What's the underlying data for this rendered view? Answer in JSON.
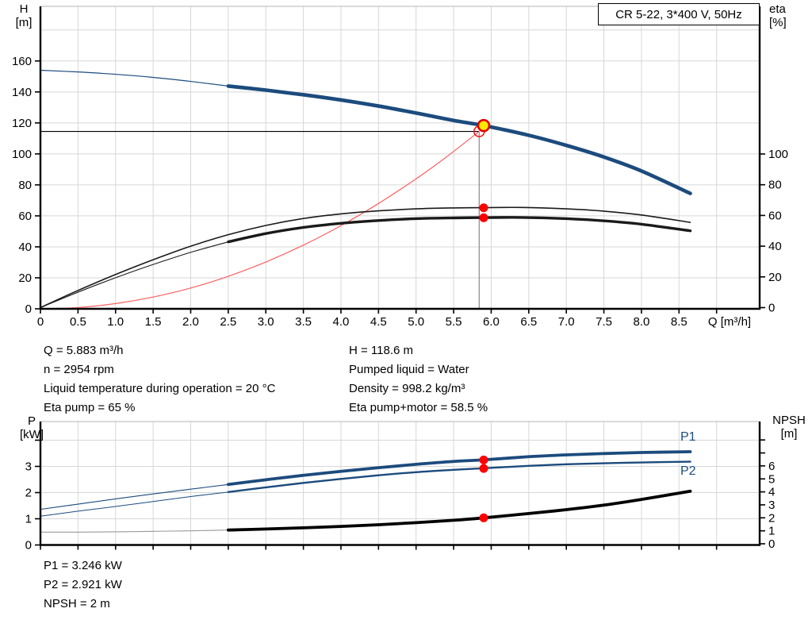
{
  "window": {
    "background": "#ffffff"
  },
  "title_box": {
    "label": "CR 5-22, 3*400 V, 50Hz"
  },
  "info_top": {
    "left": [
      "Q = 5.883 m³/h",
      "n = 2954 rpm",
      "Liquid temperature during operation = 20 °C",
      "Eta pump = 65 %"
    ],
    "right": [
      "H = 118.6 m",
      "Pumped liquid = Water",
      "Density = 998.2 kg/m³",
      "Eta pump+motor = 58.5 %"
    ]
  },
  "info_bottom": [
    "P1 = 3.246 kW",
    "P2 = 2.921 kW",
    "NPSH = 2 m"
  ],
  "colors": {
    "curve_blue": "#1c4b7d",
    "curve_black": "#1a1a1a",
    "system_red": "#ff6060",
    "dot_red": "#ff0000",
    "marker_yellow": "#ffe600",
    "marker_ring_red": "#e00000",
    "grid": "#d7d7d7",
    "axis": "#000000",
    "duty_vline_gray": "#888888",
    "npsh_thin_gray": "#999999"
  },
  "chart_data": [
    {
      "id": "qh-chart",
      "type": "line",
      "title": "CR 5-22, 3*400 V, 50Hz",
      "x_axis": {
        "label": "Q [m³/h]",
        "tick_values": [
          0,
          0.5,
          1,
          1.5,
          2,
          2.5,
          3,
          3.5,
          4,
          4.5,
          5,
          5.5,
          6,
          6.5,
          7,
          7.5,
          8,
          8.5,
          9
        ],
        "tick_labels": [
          "0",
          "0.5",
          "1.0",
          "1.5",
          "2.0",
          "2.5",
          "3.0",
          "3.5",
          "4.0",
          "4.5",
          "5.0",
          "5.5",
          "6.0",
          "6.5",
          "7.0",
          "7.5",
          "8.0",
          "8.5",
          ""
        ]
      },
      "y_left": {
        "label_line1": "H",
        "label_line2": "[m]",
        "tick_values": [
          0,
          20,
          40,
          60,
          80,
          100,
          120,
          140,
          160
        ],
        "grid_values": [
          20,
          40,
          60,
          80,
          100,
          120,
          140,
          160,
          180
        ]
      },
      "y_right": {
        "label_line1": "eta",
        "label_line2": "[%]",
        "tick_values": [
          0,
          20,
          40,
          60,
          80,
          100
        ]
      },
      "series": [
        {
          "name": "system-curve",
          "axis": "left",
          "color": "#ff6060",
          "width": 1.2,
          "points": [
            [
              0,
              0
            ],
            [
              0.5,
              0.8
            ],
            [
              1,
              3.4
            ],
            [
              1.5,
              7.6
            ],
            [
              2,
              13.4
            ],
            [
              2.5,
              21
            ],
            [
              3,
              30.2
            ],
            [
              3.5,
              41.1
            ],
            [
              4,
              53.7
            ],
            [
              4.5,
              68
            ],
            [
              5,
              83.9
            ],
            [
              5.4,
              97.9
            ],
            [
              5.84,
              114.5
            ]
          ]
        },
        {
          "name": "head-curve-low-flow",
          "axis": "left",
          "color": "#1c4b7d",
          "width": 1.2,
          "points": [
            [
              0,
              154
            ],
            [
              0.5,
              152.9
            ],
            [
              1,
              151.4
            ],
            [
              1.5,
              149.4
            ],
            [
              2,
              146.8
            ],
            [
              2.5,
              143.8
            ]
          ]
        },
        {
          "name": "head-curve",
          "axis": "left",
          "color": "#1c4b7d",
          "width": 4.6,
          "points": [
            [
              2.5,
              143.8
            ],
            [
              3,
              141.2
            ],
            [
              3.5,
              138.2
            ],
            [
              4,
              134.8
            ],
            [
              4.5,
              130.9
            ],
            [
              5,
              126.4
            ],
            [
              5.5,
              121.6
            ],
            [
              5.9,
              118.3
            ],
            [
              6.5,
              112
            ],
            [
              7,
              105.5
            ],
            [
              7.5,
              98
            ],
            [
              8,
              89
            ],
            [
              8.65,
              74.5
            ]
          ]
        },
        {
          "name": "eta-pump-curve",
          "axis": "right",
          "color": "#1a1a1a",
          "width": 1.6,
          "points": [
            [
              0,
              0
            ],
            [
              0.4,
              9
            ],
            [
              0.8,
              17.5
            ],
            [
              1.2,
              25.5
            ],
            [
              1.6,
              33
            ],
            [
              2,
              40
            ],
            [
              2.5,
              47.5
            ],
            [
              3,
              53.5
            ],
            [
              3.5,
              58
            ],
            [
              4,
              61
            ],
            [
              4.5,
              63
            ],
            [
              5,
              64.3
            ],
            [
              5.5,
              64.9
            ],
            [
              5.9,
              65.1
            ],
            [
              6.4,
              65.2
            ],
            [
              7,
              64.3
            ],
            [
              7.5,
              62.8
            ],
            [
              8,
              60.3
            ],
            [
              8.65,
              55.5
            ]
          ]
        },
        {
          "name": "eta-pump-motor-curve-low-flow",
          "axis": "right",
          "color": "#1a1a1a",
          "width": 1.1,
          "points": [
            [
              0,
              0
            ],
            [
              0.4,
              8.1
            ],
            [
              0.8,
              15.8
            ],
            [
              1.2,
              23
            ],
            [
              1.6,
              29.7
            ],
            [
              2,
              36
            ],
            [
              2.5,
              42.8
            ]
          ]
        },
        {
          "name": "eta-pump-motor-curve",
          "axis": "right",
          "color": "#1a1a1a",
          "width": 3.4,
          "points": [
            [
              2.5,
              42.8
            ],
            [
              3,
              48.2
            ],
            [
              3.5,
              52.2
            ],
            [
              4,
              54.9
            ],
            [
              4.5,
              56.7
            ],
            [
              5,
              57.9
            ],
            [
              5.5,
              58.4
            ],
            [
              5.9,
              58.6
            ],
            [
              6.4,
              58.7
            ],
            [
              7,
              57.9
            ],
            [
              7.5,
              56.5
            ],
            [
              8,
              54.3
            ],
            [
              8.65,
              50
            ]
          ]
        }
      ],
      "markers": {
        "operating_point": {
          "q": 5.9,
          "h": 118.3
        },
        "rated_point": {
          "q": 5.84,
          "h": 114.5
        },
        "eta_dots": [
          {
            "q": 5.9,
            "v": 65
          },
          {
            "q": 5.9,
            "v": 58.5
          }
        ]
      }
    },
    {
      "id": "power-npsh-chart",
      "type": "line",
      "x_axis": {
        "label": "",
        "tick_values": [
          0,
          0.5,
          1,
          1.5,
          2,
          2.5,
          3,
          3.5,
          4,
          4.5,
          5,
          5.5,
          6,
          6.5,
          7,
          7.5,
          8,
          8.5,
          9
        ],
        "tick_labels": []
      },
      "y_left": {
        "label_line1": "P",
        "label_line2": "[kW]",
        "tick_values": [
          0,
          1,
          2,
          3,
          4
        ],
        "tick_labels": [
          "0",
          "1",
          "2",
          "3",
          ""
        ],
        "grid_values": [
          1,
          2,
          3,
          4
        ]
      },
      "y_right": {
        "label_line1": "NPSH",
        "label_line2": "[m]",
        "tick_values": [
          0,
          1,
          2,
          3,
          4,
          5,
          6,
          7,
          8
        ],
        "tick_labels": [
          "0",
          "1",
          "2",
          "3",
          "4",
          "5",
          "6",
          "",
          ""
        ]
      },
      "curve_labels": [
        {
          "text": "P1"
        },
        {
          "text": "P2"
        }
      ],
      "series": [
        {
          "name": "p1-curve-low-flow",
          "axis": "left",
          "color": "#1c4b7d",
          "width": 1.1,
          "points": [
            [
              0,
              1.36
            ],
            [
              0.5,
              1.56
            ],
            [
              1,
              1.76
            ],
            [
              1.5,
              1.95
            ],
            [
              2,
              2.13
            ],
            [
              2.5,
              2.31
            ]
          ]
        },
        {
          "name": "p1-curve",
          "axis": "left",
          "color": "#1c4b7d",
          "width": 3.8,
          "points": [
            [
              2.5,
              2.31
            ],
            [
              3,
              2.49
            ],
            [
              3.5,
              2.66
            ],
            [
              4,
              2.81
            ],
            [
              4.5,
              2.95
            ],
            [
              5,
              3.08
            ],
            [
              5.5,
              3.19
            ],
            [
              5.9,
              3.25
            ],
            [
              6.5,
              3.37
            ],
            [
              7,
              3.44
            ],
            [
              7.5,
              3.49
            ],
            [
              8,
              3.53
            ],
            [
              8.65,
              3.56
            ]
          ]
        },
        {
          "name": "p2-curve-low-flow",
          "axis": "left",
          "color": "#1c4b7d",
          "width": 1.0,
          "points": [
            [
              0,
              1.1
            ],
            [
              0.5,
              1.29
            ],
            [
              1,
              1.47
            ],
            [
              1.5,
              1.66
            ],
            [
              2,
              1.85
            ],
            [
              2.5,
              2.02
            ]
          ]
        },
        {
          "name": "p2-curve",
          "axis": "left",
          "color": "#1c4b7d",
          "width": 2.4,
          "points": [
            [
              2.5,
              2.02
            ],
            [
              3,
              2.2
            ],
            [
              3.5,
              2.37
            ],
            [
              4,
              2.52
            ],
            [
              4.5,
              2.66
            ],
            [
              5,
              2.78
            ],
            [
              5.5,
              2.87
            ],
            [
              5.9,
              2.93
            ],
            [
              6.5,
              3.02
            ],
            [
              7,
              3.08
            ],
            [
              7.5,
              3.12
            ],
            [
              8,
              3.15
            ],
            [
              8.65,
              3.18
            ]
          ]
        },
        {
          "name": "npsh-curve-low-flow",
          "axis": "right",
          "color": "#999999",
          "width": 1.1,
          "points": [
            [
              0,
              0.9
            ],
            [
              0.5,
              0.9
            ],
            [
              1,
              0.92
            ],
            [
              1.5,
              0.96
            ],
            [
              2,
              1.0
            ],
            [
              2.5,
              1.06
            ]
          ]
        },
        {
          "name": "npsh-curve",
          "axis": "right",
          "color": "#000000",
          "width": 3.8,
          "points": [
            [
              2.5,
              1.06
            ],
            [
              3,
              1.14
            ],
            [
              3.5,
              1.23
            ],
            [
              4,
              1.34
            ],
            [
              4.5,
              1.47
            ],
            [
              5,
              1.63
            ],
            [
              5.5,
              1.81
            ],
            [
              5.9,
              2.0
            ],
            [
              6.5,
              2.33
            ],
            [
              7,
              2.63
            ],
            [
              7.5,
              2.98
            ],
            [
              8,
              3.42
            ],
            [
              8.65,
              4.05
            ]
          ]
        }
      ],
      "dots": [
        {
          "q": 5.9,
          "axis": "left",
          "v": 3.246
        },
        {
          "q": 5.9,
          "axis": "left",
          "v": 2.921
        },
        {
          "q": 5.9,
          "axis": "right",
          "v": 2
        }
      ]
    }
  ]
}
